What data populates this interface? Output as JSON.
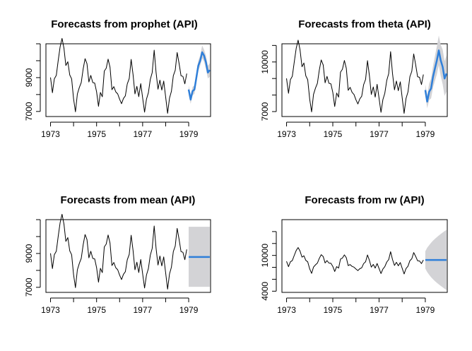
{
  "colors": {
    "forecast": "#2f7fd9",
    "interval": "#d3d3d6",
    "history": "#000000"
  },
  "chart_data": [
    {
      "type": "line",
      "title": "Forecasts from prophet (API)",
      "xlim": [
        1972.8,
        1979.95
      ],
      "ylim": [
        6700,
        11000
      ],
      "xticks": [
        1973,
        1975,
        1977,
        1979
      ],
      "xtick_labels": [
        "1973",
        "",
        "1975",
        "",
        "1977",
        "",
        "1979"
      ],
      "xtick_all": [
        1973,
        1974,
        1975,
        1976,
        1977,
        1978,
        1979
      ],
      "yticks": [
        7000,
        8000,
        9000,
        10000,
        11000
      ],
      "ytick_labels": [
        "7000",
        "",
        "9000",
        "",
        ""
      ],
      "history": {
        "start": 1973.0,
        "freq": 12,
        "values": [
          9007,
          8106,
          8928,
          9137,
          10017,
          10826,
          11317,
          10744,
          9713,
          9938,
          9161,
          8927,
          7750,
          6981,
          8038,
          8422,
          8714,
          9512,
          10120,
          9823,
          8743,
          9129,
          8710,
          8680,
          8162,
          7306,
          8124,
          7870,
          9387,
          9556,
          10093,
          9620,
          8285,
          8466,
          8160,
          8034,
          7717,
          7461,
          7767,
          7925,
          8623,
          8945,
          10078,
          9179,
          8037,
          8488,
          7874,
          8647,
          7792,
          6957,
          7726,
          8106,
          8890,
          9299,
          10625,
          9302,
          8314,
          8850,
          8265,
          8796,
          7836,
          6892,
          7791,
          8192,
          9115,
          9434,
          10484,
          9827,
          9110,
          9070,
          8633,
          9240
        ]
      },
      "forecast": {
        "start": 1979.0,
        "freq": 12,
        "mean": [
          8300,
          7700,
          8200,
          8300,
          9000,
          9700,
          10000,
          10500,
          10300,
          9900,
          9300,
          9450
        ],
        "lower": [
          8050,
          7450,
          7950,
          8050,
          8700,
          9400,
          9700,
          10150,
          9950,
          9500,
          8950,
          9050
        ],
        "upper": [
          8550,
          7950,
          8450,
          8550,
          9300,
          10000,
          10300,
          10900,
          10650,
          10300,
          9700,
          9850
        ]
      }
    },
    {
      "type": "line",
      "title": "Forecasts from theta (API)",
      "xlim": [
        1972.8,
        1979.95
      ],
      "ylim": [
        6700,
        11100
      ],
      "xticks": [
        1973,
        1975,
        1977,
        1979
      ],
      "xtick_labels": [
        "1973",
        "",
        "1975",
        "",
        "1977",
        "",
        "1979"
      ],
      "xtick_all": [
        1973,
        1974,
        1975,
        1976,
        1977,
        1978,
        1979
      ],
      "yticks": [
        7000,
        8000,
        9000,
        10000,
        11000
      ],
      "ytick_labels": [
        "7000",
        "",
        "",
        "10000",
        ""
      ],
      "history": {
        "start": 1973.0,
        "freq": 12,
        "values": [
          9007,
          8106,
          8928,
          9137,
          10017,
          10826,
          11317,
          10744,
          9713,
          9938,
          9161,
          8927,
          7750,
          6981,
          8038,
          8422,
          8714,
          9512,
          10120,
          9823,
          8743,
          9129,
          8710,
          8680,
          8162,
          7306,
          8124,
          7870,
          9387,
          9556,
          10093,
          9620,
          8285,
          8466,
          8160,
          8034,
          7717,
          7461,
          7767,
          7925,
          8623,
          8945,
          10078,
          9179,
          8037,
          8488,
          7874,
          8647,
          7792,
          6957,
          7726,
          8106,
          8890,
          9299,
          10625,
          9302,
          8314,
          8850,
          8265,
          8796,
          7836,
          6892,
          7791,
          8192,
          9115,
          9434,
          10484,
          9827,
          9110,
          9070,
          8633,
          9240
        ]
      },
      "forecast": {
        "start": 1979.0,
        "freq": 12,
        "mean": [
          8300,
          7600,
          8200,
          8400,
          9100,
          9600,
          10100,
          10700,
          10100,
          9700,
          9000,
          9300
        ],
        "lower": [
          7950,
          7200,
          7700,
          7800,
          8450,
          8850,
          9250,
          9800,
          9150,
          8650,
          7950,
          8200
        ],
        "upper": [
          8650,
          8000,
          8700,
          9000,
          9750,
          10350,
          10950,
          11600,
          11050,
          10750,
          10050,
          10400
        ]
      }
    },
    {
      "type": "line",
      "title": "Forecasts from mean (API)",
      "xlim": [
        1972.8,
        1979.95
      ],
      "ylim": [
        6700,
        11000
      ],
      "xticks": [
        1973,
        1975,
        1977,
        1979
      ],
      "xtick_labels": [
        "1973",
        "",
        "1975",
        "",
        "1977",
        "",
        "1979"
      ],
      "xtick_all": [
        1973,
        1974,
        1975,
        1976,
        1977,
        1978,
        1979
      ],
      "yticks": [
        7000,
        8000,
        9000,
        10000,
        11000
      ],
      "ytick_labels": [
        "7000",
        "",
        "9000",
        "",
        ""
      ],
      "history": {
        "start": 1973.0,
        "freq": 12,
        "values": [
          9007,
          8106,
          8928,
          9137,
          10017,
          10826,
          11317,
          10744,
          9713,
          9938,
          9161,
          8927,
          7750,
          6981,
          8038,
          8422,
          8714,
          9512,
          10120,
          9823,
          8743,
          9129,
          8710,
          8680,
          8162,
          7306,
          8124,
          7870,
          9387,
          9556,
          10093,
          9620,
          8285,
          8466,
          8160,
          8034,
          7717,
          7461,
          7767,
          7925,
          8623,
          8945,
          10078,
          9179,
          8037,
          8488,
          7874,
          8647,
          7792,
          6957,
          7726,
          8106,
          8890,
          9299,
          10625,
          9302,
          8314,
          8850,
          8265,
          8796,
          7836,
          6892,
          7791,
          8192,
          9115,
          9434,
          10484,
          9827,
          9110,
          9070,
          8633,
          9240
        ]
      },
      "forecast": {
        "start": 1979.0,
        "freq": 12,
        "mean": [
          8790,
          8790,
          8790,
          8790,
          8790,
          8790,
          8790,
          8790,
          8790,
          8790,
          8790,
          8790
        ],
        "lower": [
          7030,
          7030,
          7030,
          7030,
          7030,
          7030,
          7030,
          7030,
          7030,
          7030,
          7030,
          7030
        ],
        "upper": [
          10580,
          10580,
          10580,
          10580,
          10580,
          10580,
          10580,
          10580,
          10580,
          10580,
          10580,
          10580
        ]
      }
    },
    {
      "type": "line",
      "title": "Forecasts from rw (API)",
      "xlim": [
        1972.8,
        1979.95
      ],
      "ylim": [
        3800,
        16000
      ],
      "xticks": [
        1973,
        1975,
        1977,
        1979
      ],
      "xtick_labels": [
        "1973",
        "",
        "1975",
        "",
        "1977",
        "",
        "1979"
      ],
      "xtick_all": [
        1973,
        1974,
        1975,
        1976,
        1977,
        1978,
        1979
      ],
      "yticks": [
        4000,
        6000,
        8000,
        10000,
        12000,
        14000
      ],
      "ytick_labels": [
        "4000",
        "",
        "",
        "10000",
        "",
        ""
      ],
      "history": {
        "start": 1973.0,
        "freq": 12,
        "values": [
          9007,
          8106,
          8928,
          9137,
          10017,
          10826,
          11317,
          10744,
          9713,
          9938,
          9161,
          8927,
          7750,
          6981,
          8038,
          8422,
          8714,
          9512,
          10120,
          9823,
          8743,
          9129,
          8710,
          8680,
          8162,
          7306,
          8124,
          7870,
          9387,
          9556,
          10093,
          9620,
          8285,
          8466,
          8160,
          8034,
          7717,
          7461,
          7767,
          7925,
          8623,
          8945,
          10078,
          9179,
          8037,
          8488,
          7874,
          8647,
          7792,
          6957,
          7726,
          8106,
          8890,
          9299,
          10625,
          9302,
          8314,
          8850,
          8265,
          8796,
          7836,
          6892,
          7791,
          8192,
          9115,
          9434,
          10484,
          9827,
          9110,
          9070,
          8633,
          9240
        ]
      },
      "forecast": {
        "start": 1979.0,
        "freq": 12,
        "mean": [
          9240,
          9240,
          9240,
          9240,
          9240,
          9240,
          9240,
          9240,
          9240,
          9240,
          9240,
          9240
        ],
        "lower": [
          7800,
          7200,
          6750,
          6350,
          6000,
          5700,
          5400,
          5150,
          4900,
          4650,
          4400,
          4200
        ],
        "upper": [
          10680,
          11280,
          11730,
          12130,
          12480,
          12780,
          13080,
          13330,
          13580,
          13830,
          14080,
          14280
        ]
      }
    }
  ]
}
